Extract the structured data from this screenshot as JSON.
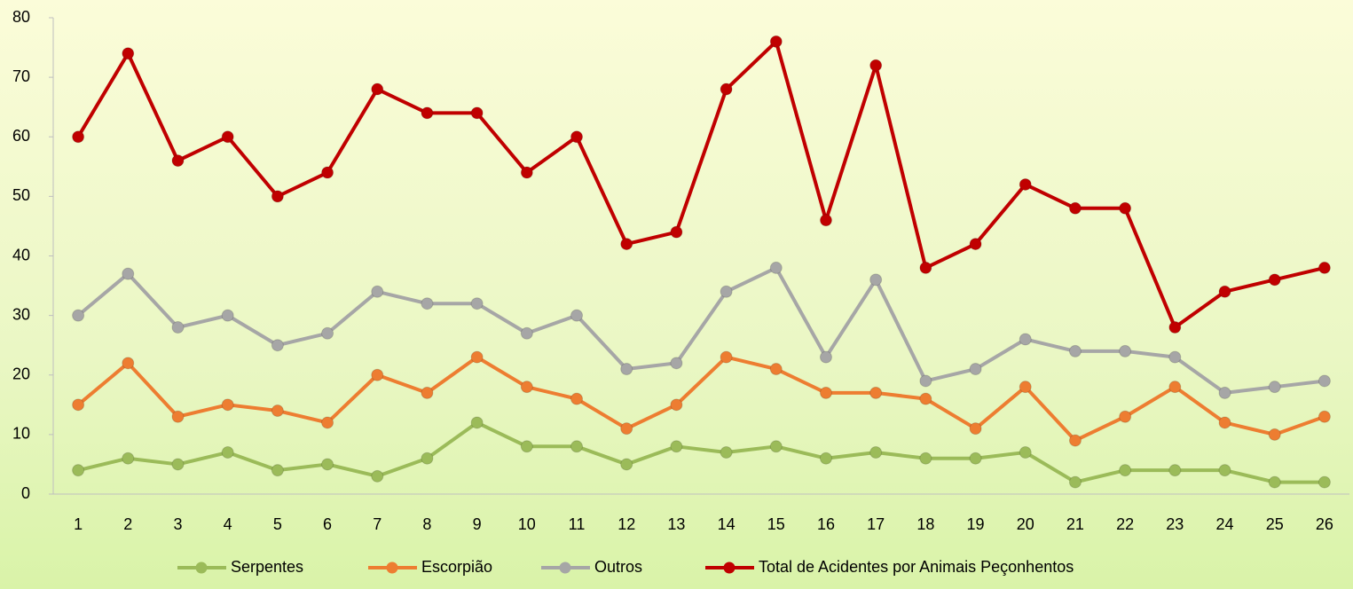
{
  "chart_data": {
    "type": "line",
    "categories": [
      1,
      2,
      3,
      4,
      5,
      6,
      7,
      8,
      9,
      10,
      11,
      12,
      13,
      14,
      15,
      16,
      17,
      18,
      19,
      20,
      21,
      22,
      23,
      24,
      25,
      26
    ],
    "series": [
      {
        "name": "Serpentes",
        "color": "#9bbb59",
        "values": [
          4,
          6,
          5,
          7,
          4,
          5,
          3,
          6,
          12,
          8,
          8,
          5,
          8,
          7,
          8,
          6,
          7,
          6,
          6,
          7,
          2,
          4,
          4,
          4,
          2,
          2
        ]
      },
      {
        "name": "Escorpião",
        "color": "#ed7d31",
        "values": [
          15,
          22,
          13,
          15,
          14,
          12,
          20,
          17,
          23,
          18,
          16,
          11,
          15,
          23,
          21,
          17,
          17,
          16,
          11,
          18,
          9,
          13,
          18,
          12,
          10,
          13
        ]
      },
      {
        "name": "Outros",
        "color": "#a6a6a6",
        "values": [
          30,
          37,
          28,
          30,
          25,
          27,
          34,
          32,
          32,
          27,
          30,
          21,
          22,
          34,
          38,
          23,
          36,
          19,
          21,
          26,
          24,
          24,
          23,
          17,
          18,
          19
        ]
      },
      {
        "name": "Total de Acidentes por Animais Peçonhentos",
        "color": "#c00000",
        "values": [
          60,
          74,
          56,
          60,
          50,
          54,
          68,
          64,
          64,
          54,
          60,
          42,
          44,
          68,
          76,
          46,
          72,
          38,
          42,
          52,
          48,
          48,
          28,
          34,
          36,
          38
        ]
      }
    ],
    "ylim": [
      0,
      80
    ],
    "yticks": [
      0,
      10,
      20,
      30,
      40,
      50,
      60,
      70,
      80
    ],
    "grid": false,
    "legend": "bottom"
  }
}
